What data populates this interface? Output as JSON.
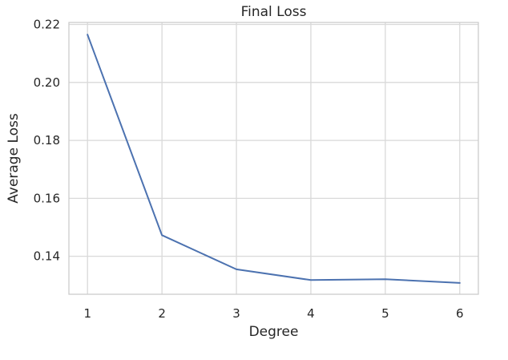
{
  "chart_data": {
    "type": "line",
    "title": "Final Loss",
    "xlabel": "Degree",
    "ylabel": "Average Loss",
    "x": [
      1,
      2,
      3,
      4,
      5,
      6
    ],
    "series": [
      {
        "values": [
          0.2165,
          0.1473,
          0.1355,
          0.1318,
          0.1321,
          0.1308
        ]
      }
    ],
    "xticks": [
      "1",
      "2",
      "3",
      "4",
      "5",
      "6"
    ],
    "yticks": [
      "0.14",
      "0.16",
      "0.18",
      "0.20",
      "0.22"
    ],
    "xlim": [
      0.75,
      6.25
    ],
    "ylim": [
      0.1269,
      0.2207
    ],
    "grid": true,
    "colors": {
      "line": "#4c72b0"
    }
  }
}
